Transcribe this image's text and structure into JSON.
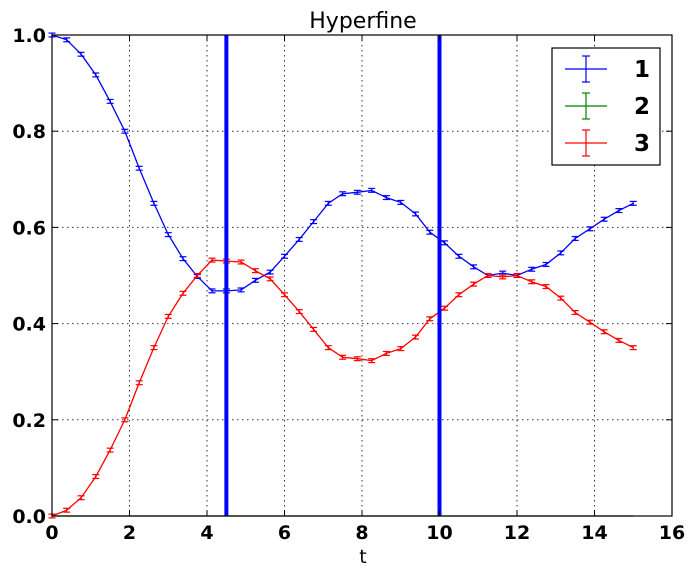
{
  "chart_data": {
    "type": "line",
    "title": "Hyperfine",
    "xlabel": "t",
    "ylabel": "",
    "xlim": [
      0,
      16
    ],
    "ylim": [
      0.0,
      1.0
    ],
    "xticks": [
      "0",
      "2",
      "4",
      "6",
      "8",
      "10",
      "12",
      "14",
      "16"
    ],
    "yticks": [
      "0.0",
      "0.2",
      "0.4",
      "0.6",
      "0.8",
      "1.0"
    ],
    "grid": true,
    "legend_position": "top-right",
    "vlines": [
      {
        "x": 4.5,
        "color": "#0000ff"
      },
      {
        "x": 10.0,
        "color": "#0000ff"
      }
    ],
    "x": [
      0,
      0.38,
      0.75,
      1.13,
      1.5,
      1.88,
      2.25,
      2.63,
      3.0,
      3.38,
      3.75,
      4.13,
      4.5,
      4.88,
      5.25,
      5.63,
      6.0,
      6.38,
      6.75,
      7.13,
      7.5,
      7.88,
      8.25,
      8.63,
      9.0,
      9.38,
      9.75,
      10.13,
      10.5,
      10.88,
      11.25,
      11.63,
      12.0,
      12.38,
      12.75,
      13.13,
      13.5,
      13.88,
      14.25,
      14.63,
      15.0
    ],
    "series": [
      {
        "name": "1",
        "color": "#0000ff",
        "values": [
          1.0,
          0.99,
          0.96,
          0.917,
          0.862,
          0.8,
          0.723,
          0.65,
          0.585,
          0.535,
          0.498,
          0.468,
          0.468,
          0.47,
          0.49,
          0.507,
          0.54,
          0.575,
          0.612,
          0.65,
          0.67,
          0.673,
          0.677,
          0.662,
          0.652,
          0.628,
          0.59,
          0.568,
          0.54,
          0.518,
          0.5,
          0.505,
          0.5,
          0.513,
          0.523,
          0.547,
          0.577,
          0.597,
          0.617,
          0.635,
          0.65
        ],
        "error": 0.004
      },
      {
        "name": "2",
        "color": "#008000",
        "values": [
          0,
          0,
          0,
          0,
          0,
          0,
          0,
          0,
          0,
          0,
          0,
          0,
          0,
          0,
          0,
          0,
          0,
          0,
          0,
          0,
          0,
          0,
          0,
          0,
          0,
          0,
          0,
          0,
          0,
          0,
          0,
          0,
          0,
          0,
          0,
          0,
          0,
          0,
          0,
          0,
          0
        ],
        "error": 0.0
      },
      {
        "name": "3",
        "color": "#ff0000",
        "values": [
          0.0,
          0.012,
          0.038,
          0.082,
          0.137,
          0.2,
          0.277,
          0.35,
          0.415,
          0.463,
          0.5,
          0.532,
          0.53,
          0.528,
          0.51,
          0.493,
          0.46,
          0.425,
          0.388,
          0.35,
          0.33,
          0.327,
          0.323,
          0.338,
          0.348,
          0.372,
          0.41,
          0.432,
          0.46,
          0.482,
          0.5,
          0.497,
          0.5,
          0.487,
          0.477,
          0.453,
          0.423,
          0.403,
          0.383,
          0.365,
          0.35
        ],
        "error": 0.004
      }
    ]
  }
}
